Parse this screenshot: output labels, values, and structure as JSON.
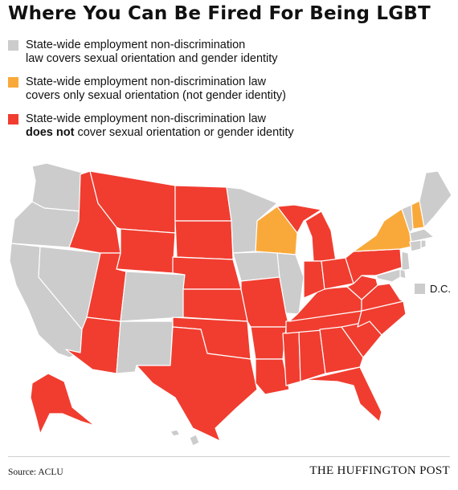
{
  "title": "Where You Can Be Fired For Being LGBT",
  "colors": {
    "full": "#cccccc",
    "partial": "#f9a93a",
    "none": "#f03d30",
    "border": "#ffffff"
  },
  "legend": [
    {
      "category": "full",
      "lines": [
        {
          "text": "State-wide employment non-discrimination"
        },
        {
          "text": "law covers sexual orientation and gender identity"
        }
      ]
    },
    {
      "category": "partial",
      "lines": [
        {
          "text": "State-wide employment non-discrimination law"
        },
        {
          "text": "covers only sexual orientation (not gender identity)"
        }
      ]
    },
    {
      "category": "none",
      "lines": [
        {
          "text": "State-wide employment non-discrimination law"
        },
        {
          "bold": "does not",
          "text": " cover sexual orientation or gender identity"
        }
      ]
    }
  ],
  "dc": {
    "label": "D.C.",
    "category": "full"
  },
  "source": "Source: ACLU",
  "brand": "THE HUFFINGTON POST"
}
